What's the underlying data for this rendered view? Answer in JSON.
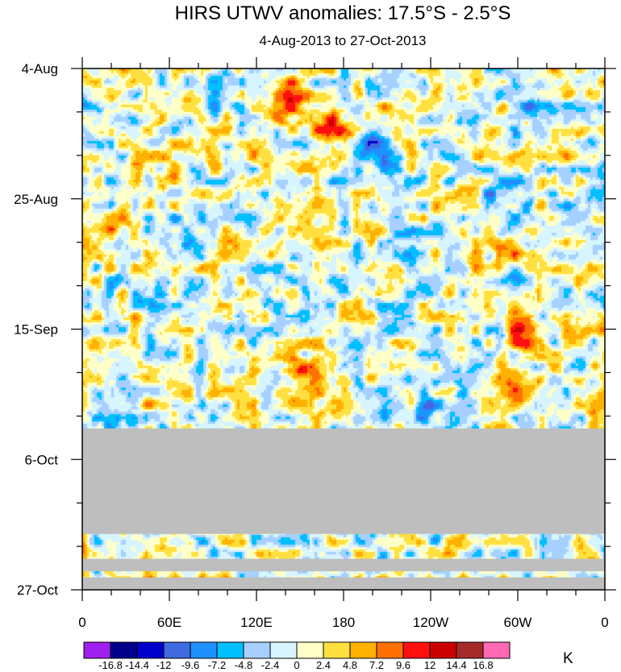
{
  "chart_data": {
    "type": "heatmap",
    "title": "HIRS UTWV anomalies: 17.5°S - 2.5°S",
    "subtitle": "4-Aug-2013 to 27-Oct-2013",
    "xlabel": "",
    "ylabel": "",
    "x_ticks": [
      "0",
      "60E",
      "120E",
      "180",
      "120W",
      "60W",
      "0"
    ],
    "y_ticks": [
      "4-Aug",
      "25-Aug",
      "15-Sep",
      "6-Oct",
      "27-Oct"
    ],
    "xlim": [
      0,
      360
    ],
    "ylim_days": [
      0,
      84
    ],
    "missing_data_days": [
      [
        58,
        75
      ],
      [
        79,
        81
      ],
      [
        82,
        84
      ]
    ],
    "colorbar": {
      "unit": "K",
      "levels": [
        "-16.8",
        "-14.4",
        "-12",
        "-9.6",
        "-7.2",
        "-4.8",
        "-2.4",
        "0",
        "2.4",
        "4.8",
        "7.2",
        "9.6",
        "12",
        "14.4",
        "16.8"
      ],
      "colors": [
        "#a020f0",
        "#00008b",
        "#0000cd",
        "#4169e1",
        "#1e90ff",
        "#00bfff",
        "#a6d0ff",
        "#d6f5ff",
        "#ffffc8",
        "#ffe040",
        "#ffb000",
        "#ff7000",
        "#ff1010",
        "#cc0000",
        "#a52a2a",
        "#ff69b4"
      ]
    },
    "anomaly_features": [
      {
        "lon": 140,
        "day": 5,
        "value": 12.5
      },
      {
        "lon": 170,
        "day": 9,
        "value": 11
      },
      {
        "lon": 150,
        "day": 49,
        "value": 13
      },
      {
        "lon": 303,
        "day": 42,
        "value": 9.5
      },
      {
        "lon": 305,
        "day": 51,
        "value": 9.6
      },
      {
        "lon": 290,
        "day": 30,
        "value": 7.5
      },
      {
        "lon": 60,
        "day": 16,
        "value": 7.2
      },
      {
        "lon": 20,
        "day": 25,
        "value": 6.5
      },
      {
        "lon": 95,
        "day": 3,
        "value": -9
      },
      {
        "lon": 200,
        "day": 12,
        "value": -9.5
      },
      {
        "lon": 225,
        "day": 28,
        "value": -8.5
      },
      {
        "lon": 315,
        "day": 6,
        "value": -9
      },
      {
        "lon": 285,
        "day": 20,
        "value": -7.5
      },
      {
        "lon": 300,
        "day": 33,
        "value": -8
      },
      {
        "lon": 235,
        "day": 55,
        "value": -8.5
      },
      {
        "lon": 195,
        "day": 45,
        "value": -6.5
      },
      {
        "lon": 60,
        "day": 27,
        "value": -6
      },
      {
        "lon": 15,
        "day": 9,
        "value": -5
      }
    ]
  }
}
